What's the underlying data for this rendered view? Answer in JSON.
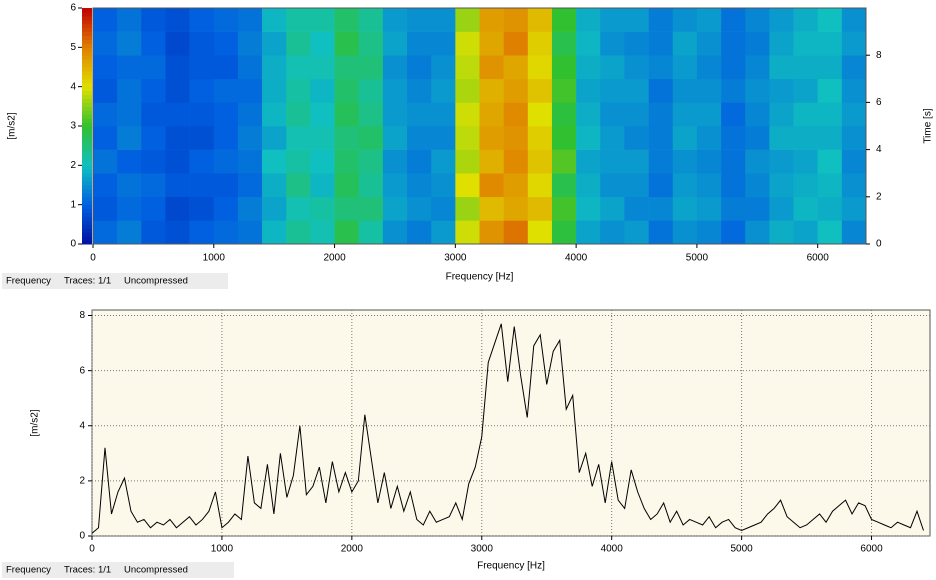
{
  "chart_data": [
    {
      "type": "heatmap",
      "xlabel": "Frequency [Hz]",
      "ylabel": "Time [s]",
      "clabel": "[m/s2]",
      "xlim": [
        0,
        6400
      ],
      "xticks": [
        0,
        1000,
        2000,
        3000,
        4000,
        5000,
        6000
      ],
      "ylim": [
        0,
        10
      ],
      "yticks": [
        0,
        2,
        4,
        6,
        8
      ],
      "clim": [
        0,
        6
      ],
      "cticks": [
        0,
        1,
        2,
        3,
        4,
        5,
        6
      ],
      "colormap": [
        "#0010a0",
        "#0060e0",
        "#10c0c0",
        "#30c030",
        "#e0e000",
        "#e08000",
        "#c00000"
      ],
      "values": [
        [
          1.1,
          1.3,
          0.9,
          0.8,
          1.0,
          1.1,
          1.2,
          1.9,
          2.3,
          2.1,
          2.8,
          2.2,
          1.5,
          1.3,
          1.6,
          3.9,
          4.8,
          5.1,
          4.0,
          2.9,
          1.7,
          1.5,
          1.6,
          1.2,
          1.5,
          1.4,
          1.1,
          1.5,
          1.8,
          1.7,
          2.0,
          1.4
        ],
        [
          0.9,
          1.1,
          1.0,
          0.7,
          0.8,
          1.0,
          1.3,
          1.7,
          2.1,
          2.2,
          2.5,
          2.5,
          1.7,
          1.5,
          1.4,
          3.6,
          4.4,
          4.6,
          4.4,
          3.1,
          1.9,
          1.7,
          1.4,
          1.4,
          1.7,
          1.6,
          1.3,
          1.3,
          1.6,
          1.9,
          1.8,
          1.6
        ],
        [
          1.0,
          1.2,
          1.1,
          0.9,
          0.9,
          0.9,
          1.1,
          1.8,
          2.4,
          1.9,
          2.7,
          2.3,
          1.6,
          1.4,
          1.5,
          4.0,
          4.9,
          4.7,
          4.1,
          2.8,
          1.8,
          1.5,
          1.5,
          1.2,
          1.6,
          1.5,
          1.2,
          1.4,
          1.7,
          1.8,
          1.9,
          1.5
        ],
        [
          1.2,
          1.0,
          0.9,
          0.8,
          1.0,
          1.1,
          1.2,
          2.0,
          2.2,
          2.0,
          2.6,
          2.4,
          1.5,
          1.3,
          1.6,
          3.7,
          4.5,
          4.9,
          4.3,
          3.2,
          1.7,
          1.6,
          1.6,
          1.3,
          1.5,
          1.4,
          1.2,
          1.5,
          1.6,
          1.7,
          2.0,
          1.4
        ],
        [
          1.0,
          1.3,
          1.0,
          0.8,
          0.8,
          1.0,
          1.3,
          1.7,
          2.1,
          2.1,
          2.5,
          2.6,
          1.7,
          1.4,
          1.4,
          3.8,
          4.7,
          4.8,
          4.2,
          3.0,
          1.9,
          1.6,
          1.4,
          1.3,
          1.7,
          1.5,
          1.2,
          1.3,
          1.8,
          1.8,
          1.8,
          1.5
        ],
        [
          1.1,
          1.2,
          0.9,
          0.9,
          0.9,
          1.0,
          1.2,
          1.9,
          2.3,
          2.0,
          2.7,
          2.4,
          1.6,
          1.5,
          1.5,
          3.9,
          4.6,
          4.9,
          4.0,
          2.9,
          1.8,
          1.5,
          1.5,
          1.3,
          1.6,
          1.6,
          1.1,
          1.4,
          1.7,
          1.9,
          1.9,
          1.6
        ],
        [
          0.9,
          1.2,
          1.0,
          0.8,
          1.0,
          1.1,
          1.1,
          1.8,
          2.2,
          1.9,
          2.6,
          2.3,
          1.6,
          1.4,
          1.6,
          3.7,
          4.5,
          4.7,
          4.3,
          3.1,
          1.7,
          1.6,
          1.6,
          1.2,
          1.5,
          1.5,
          1.3,
          1.5,
          1.6,
          1.7,
          2.0,
          1.5
        ],
        [
          1.0,
          1.1,
          1.1,
          0.8,
          0.9,
          0.9,
          1.2,
          1.8,
          2.1,
          2.1,
          2.5,
          2.5,
          1.5,
          1.3,
          1.5,
          3.8,
          4.8,
          4.6,
          4.1,
          3.0,
          1.8,
          1.7,
          1.5,
          1.4,
          1.6,
          1.4,
          1.2,
          1.4,
          1.8,
          1.8,
          1.8,
          1.4
        ],
        [
          1.1,
          1.3,
          1.0,
          0.7,
          0.9,
          1.0,
          1.3,
          1.7,
          2.3,
          2.0,
          2.8,
          2.4,
          1.7,
          1.4,
          1.4,
          3.9,
          4.6,
          5.0,
          4.2,
          2.8,
          1.9,
          1.5,
          1.4,
          1.3,
          1.7,
          1.5,
          1.2,
          1.3,
          1.7,
          1.9,
          1.9,
          1.6
        ],
        [
          1.0,
          1.2,
          0.9,
          0.8,
          1.0,
          1.1,
          1.2,
          1.9,
          2.2,
          2.2,
          2.6,
          2.3,
          1.6,
          1.5,
          1.5,
          3.6,
          4.7,
          4.8,
          4.4,
          3.0,
          1.8,
          1.6,
          1.6,
          1.3,
          1.5,
          1.6,
          1.2,
          1.4,
          1.6,
          1.8,
          2.0,
          1.5
        ]
      ],
      "status": {
        "label": "Frequency",
        "traces": "Traces: 1/1",
        "mode": "Uncompressed"
      }
    },
    {
      "type": "line",
      "xlabel": "Frequency [Hz]",
      "ylabel": "[m/s2]",
      "xlim": [
        0,
        6450
      ],
      "xticks": [
        0,
        1000,
        2000,
        3000,
        4000,
        5000,
        6000
      ],
      "ylim": [
        0,
        8.2
      ],
      "yticks": [
        0,
        2,
        4,
        6,
        8
      ],
      "grid": true,
      "background": "#fcf8ea",
      "x": [
        0,
        50,
        100,
        150,
        200,
        250,
        300,
        350,
        400,
        450,
        500,
        550,
        600,
        650,
        700,
        750,
        800,
        850,
        900,
        950,
        1000,
        1050,
        1100,
        1150,
        1200,
        1250,
        1300,
        1350,
        1400,
        1450,
        1500,
        1550,
        1600,
        1650,
        1700,
        1750,
        1800,
        1850,
        1900,
        1950,
        2000,
        2050,
        2100,
        2150,
        2200,
        2250,
        2300,
        2350,
        2400,
        2450,
        2500,
        2550,
        2600,
        2650,
        2700,
        2750,
        2800,
        2850,
        2900,
        2950,
        3000,
        3050,
        3100,
        3150,
        3200,
        3250,
        3300,
        3350,
        3400,
        3450,
        3500,
        3550,
        3600,
        3650,
        3700,
        3750,
        3800,
        3850,
        3900,
        3950,
        4000,
        4050,
        4100,
        4150,
        4200,
        4250,
        4300,
        4350,
        4400,
        4450,
        4500,
        4550,
        4600,
        4650,
        4700,
        4750,
        4800,
        4850,
        4900,
        4950,
        5000,
        5050,
        5100,
        5150,
        5200,
        5250,
        5300,
        5350,
        5400,
        5450,
        5500,
        5550,
        5600,
        5650,
        5700,
        5750,
        5800,
        5850,
        5900,
        5950,
        6000,
        6050,
        6100,
        6150,
        6200,
        6250,
        6300,
        6350,
        6400
      ],
      "series": [
        {
          "color": "#000000",
          "values": [
            0.1,
            0.3,
            3.2,
            0.8,
            1.6,
            2.1,
            0.9,
            0.5,
            0.6,
            0.3,
            0.5,
            0.4,
            0.6,
            0.3,
            0.5,
            0.7,
            0.4,
            0.6,
            0.9,
            1.6,
            0.3,
            0.5,
            0.8,
            0.6,
            2.9,
            1.2,
            1.0,
            2.6,
            0.8,
            3.0,
            1.4,
            2.2,
            4.0,
            1.5,
            1.8,
            2.5,
            1.2,
            2.7,
            1.6,
            2.3,
            1.6,
            2.0,
            4.4,
            2.8,
            1.2,
            2.3,
            1.0,
            1.8,
            0.9,
            1.6,
            0.6,
            0.4,
            0.9,
            0.5,
            0.6,
            0.7,
            1.2,
            0.6,
            1.9,
            2.5,
            3.6,
            6.3,
            7.0,
            7.7,
            5.6,
            7.6,
            5.8,
            4.3,
            6.9,
            7.3,
            5.5,
            6.7,
            7.1,
            4.6,
            5.1,
            2.3,
            3.0,
            1.8,
            2.6,
            1.2,
            2.7,
            1.3,
            1.0,
            2.4,
            1.6,
            1.0,
            0.6,
            0.8,
            1.2,
            0.5,
            0.9,
            0.4,
            0.6,
            0.5,
            0.4,
            0.7,
            0.3,
            0.5,
            0.6,
            0.3,
            0.2,
            0.3,
            0.4,
            0.5,
            0.8,
            1.0,
            1.3,
            0.7,
            0.5,
            0.3,
            0.4,
            0.6,
            0.8,
            0.5,
            0.9,
            1.1,
            1.3,
            0.8,
            1.2,
            1.1,
            0.6,
            0.5,
            0.4,
            0.3,
            0.5,
            0.4,
            0.3,
            0.9,
            0.2
          ]
        }
      ],
      "status": {
        "label": "Frequency",
        "traces": "Traces: 1/1",
        "mode": "Uncompressed"
      }
    }
  ]
}
